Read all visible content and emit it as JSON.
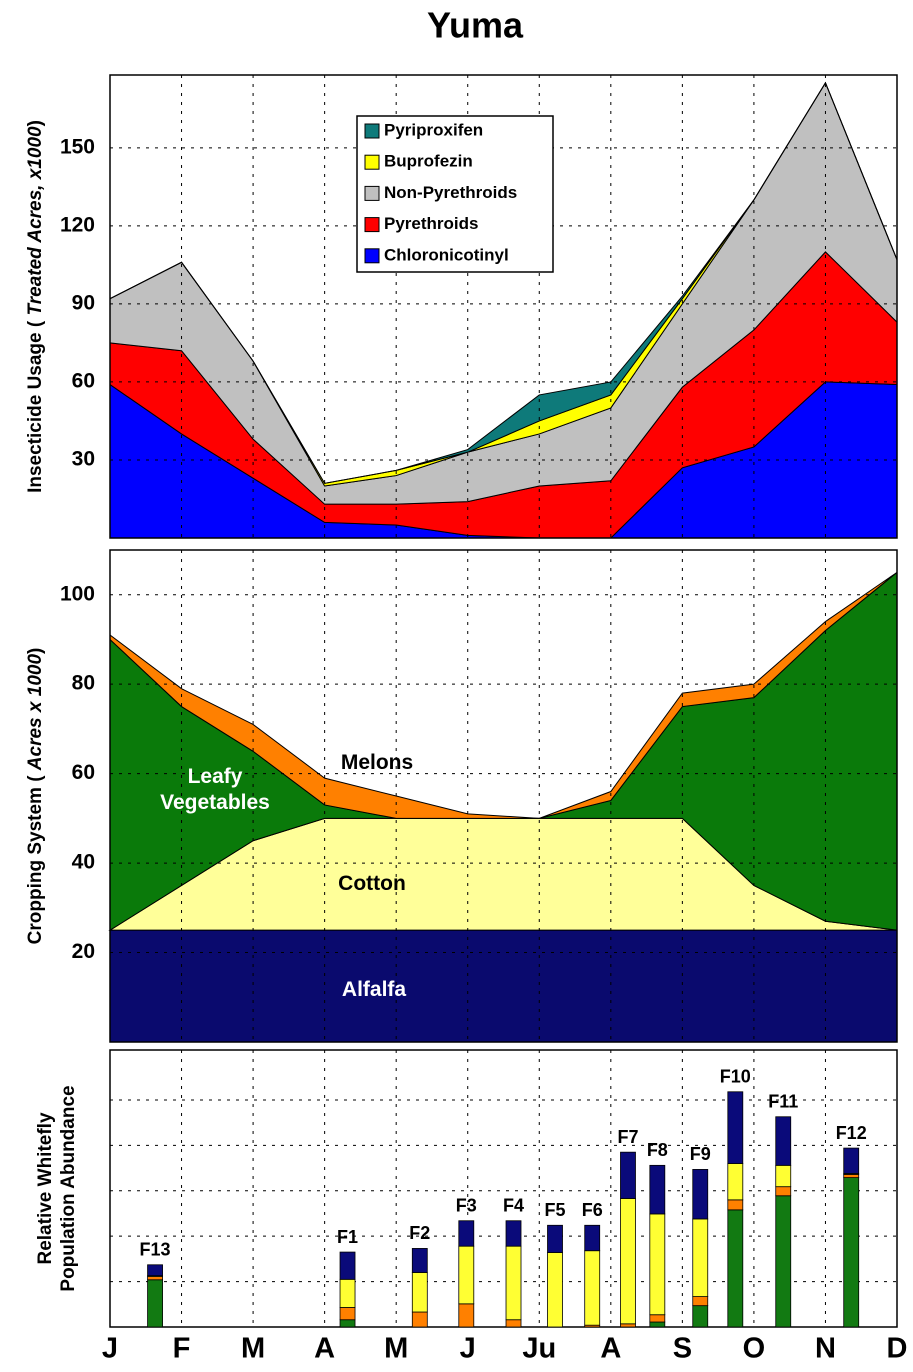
{
  "chart_data": [
    {
      "type": "stacked_area",
      "title": "Yuma",
      "ylabel": [
        "Insecticide Usage ( ",
        "Treated Acres, x1000",
        ")"
      ],
      "x": [
        0,
        1,
        2,
        3,
        4,
        5,
        6,
        7,
        8,
        9,
        10,
        11
      ],
      "xlim": [
        0,
        11
      ],
      "ylim": [
        0,
        178
      ],
      "yticks": [
        30,
        60,
        90,
        120,
        150
      ],
      "grid": true,
      "legend": "upper center",
      "series": [
        {
          "name": "Chloronicotinyl",
          "color": "#0000ff",
          "values": [
            59,
            40,
            23,
            6,
            5,
            1,
            0,
            0,
            27,
            35,
            60,
            59
          ]
        },
        {
          "name": "Pyrethroids",
          "color": "#ff0000",
          "values": [
            16,
            32,
            15,
            7,
            8,
            13,
            20,
            22,
            31,
            45,
            50,
            24
          ]
        },
        {
          "name": "Non-Pyrethroids",
          "color": "#c0c0c0",
          "values": [
            17,
            34,
            30,
            7,
            11,
            19,
            20,
            28,
            32,
            50,
            65,
            24
          ]
        },
        {
          "name": "Buprofezin",
          "color": "#ffff00",
          "values": [
            0,
            0,
            0,
            1,
            2,
            0,
            5,
            5,
            2,
            0,
            0,
            0
          ]
        },
        {
          "name": "Pyriproxifen",
          "color": "#0e7a7a",
          "values": [
            0,
            0,
            0,
            0,
            0,
            1,
            10,
            5,
            1,
            0,
            0,
            0
          ]
        }
      ]
    },
    {
      "type": "stacked_area",
      "ylabel": [
        "Cropping System ( ",
        "Acres x 1000",
        ")"
      ],
      "x": [
        0,
        1,
        2,
        3,
        4,
        5,
        6,
        7,
        8,
        9,
        10,
        11
      ],
      "xlim": [
        0,
        11
      ],
      "ylim": [
        0,
        110
      ],
      "yticks": [
        20,
        40,
        60,
        80,
        100
      ],
      "grid": true,
      "series": [
        {
          "name": "Alfalfa",
          "color": "#0a0a6e",
          "values": [
            25,
            25,
            25,
            25,
            25,
            25,
            25,
            25,
            25,
            25,
            25,
            25
          ]
        },
        {
          "name": "Cotton",
          "color": "#ffff99",
          "values": [
            0,
            10,
            20,
            25,
            25,
            25,
            25,
            25,
            25,
            10,
            2,
            0
          ]
        },
        {
          "name": "Leafy Vegetables",
          "color": "#0a7a0a",
          "values": [
            65,
            40,
            20,
            3,
            0,
            0,
            0,
            4,
            25,
            42,
            65,
            80
          ]
        },
        {
          "name": "Melons",
          "color": "#ff8000",
          "values": [
            1,
            4,
            6,
            6,
            5,
            1,
            0,
            2,
            3,
            3,
            2,
            0
          ]
        }
      ]
    },
    {
      "type": "stacked_bar",
      "ylabel": [
        "Relative Whitefly",
        "Population Abundance"
      ],
      "categories": [
        "F13",
        "F1",
        "F2",
        "F3",
        "F4",
        "F5",
        "F6",
        "F7",
        "F8",
        "F9",
        "F10",
        "F11",
        "F12"
      ],
      "x": [
        0.63,
        3.32,
        4.33,
        4.98,
        5.64,
        6.22,
        6.74,
        7.24,
        7.65,
        8.25,
        8.74,
        9.41,
        10.36
      ],
      "xlim": [
        0,
        11
      ],
      "xticks": [
        {
          "value": 0,
          "label": "J"
        },
        {
          "value": 1,
          "label": "F"
        },
        {
          "value": 2,
          "label": "M"
        },
        {
          "value": 3,
          "label": "A"
        },
        {
          "value": 4,
          "label": "M"
        },
        {
          "value": 5,
          "label": "J"
        },
        {
          "value": 6,
          "label": "Ju"
        },
        {
          "value": 7,
          "label": "A"
        },
        {
          "value": 8,
          "label": "S"
        },
        {
          "value": 9,
          "label": "O"
        },
        {
          "value": 10,
          "label": "N"
        },
        {
          "value": 11,
          "label": "D"
        }
      ],
      "ylim": [
        0,
        6.1
      ],
      "yticks": [
        1,
        2,
        3,
        4,
        5
      ],
      "grid": true,
      "series": [
        {
          "color": "#127a12",
          "values": [
            1.04,
            0.16,
            0,
            0,
            0,
            0,
            0,
            0,
            0.11,
            0.47,
            2.58,
            2.89,
            3.29
          ]
        },
        {
          "color": "#ff8000",
          "values": [
            0.07,
            0.27,
            0.33,
            0.51,
            0.16,
            0,
            0.04,
            0.07,
            0.16,
            0.2,
            0.22,
            0.2,
            0.07
          ]
        },
        {
          "color": "#ffff33",
          "values": [
            0.02,
            0.62,
            0.87,
            1.27,
            1.62,
            1.64,
            1.64,
            2.76,
            2.22,
            1.71,
            0.8,
            0.47,
            0.02
          ]
        },
        {
          "color": "#0a0a7a",
          "values": [
            0.24,
            0.6,
            0.53,
            0.56,
            0.56,
            0.6,
            0.56,
            1.02,
            1.07,
            1.09,
            1.58,
            1.07,
            0.56
          ]
        }
      ]
    }
  ]
}
